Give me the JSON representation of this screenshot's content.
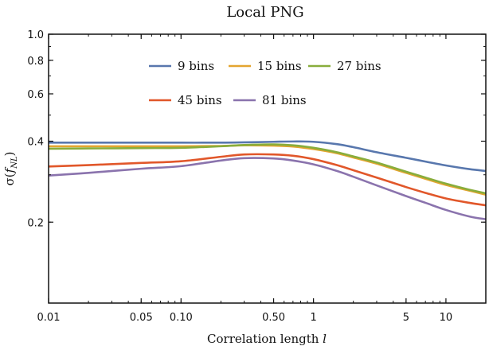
{
  "chart_data": {
    "type": "line",
    "title": "Local PNG",
    "xlabel": "Correlation length l",
    "ylabel": "σ(f_NL)",
    "xscale": "log",
    "yscale": "log",
    "xlim": [
      0.01,
      20
    ],
    "ylim": [
      0.1,
      1.0
    ],
    "xticks": [
      {
        "value": 0.01,
        "label": "0.01"
      },
      {
        "value": 0.05,
        "label": "0.05"
      },
      {
        "value": 0.1,
        "label": "0.10"
      },
      {
        "value": 0.5,
        "label": "0.50"
      },
      {
        "value": 1,
        "label": "1"
      },
      {
        "value": 5,
        "label": "5"
      },
      {
        "value": 10,
        "label": "10"
      }
    ],
    "yticks": [
      {
        "value": 0.2,
        "label": "0.2"
      },
      {
        "value": 0.4,
        "label": "0.4"
      },
      {
        "value": 0.6,
        "label": "0.6"
      },
      {
        "value": 0.8,
        "label": "0.8"
      },
      {
        "value": 1.0,
        "label": "1.0"
      }
    ],
    "grid": false,
    "legend_position": "top-center",
    "series": [
      {
        "name": "9 bins",
        "color": "#5877ad",
        "x": [
          0.01,
          0.02,
          0.05,
          0.1,
          0.2,
          0.3,
          0.5,
          0.7,
          1,
          1.5,
          2,
          3,
          5,
          7,
          10,
          15,
          20
        ],
        "y": [
          0.395,
          0.395,
          0.395,
          0.395,
          0.395,
          0.396,
          0.398,
          0.399,
          0.398,
          0.39,
          0.38,
          0.364,
          0.347,
          0.336,
          0.325,
          0.315,
          0.31
        ]
      },
      {
        "name": "15 bins",
        "color": "#e4a52f",
        "x": [
          0.01,
          0.02,
          0.05,
          0.1,
          0.2,
          0.3,
          0.5,
          0.7,
          1,
          1.5,
          2,
          3,
          5,
          7,
          10,
          15,
          20
        ],
        "y": [
          0.383,
          0.383,
          0.383,
          0.383,
          0.384,
          0.386,
          0.385,
          0.382,
          0.374,
          0.361,
          0.348,
          0.33,
          0.305,
          0.29,
          0.275,
          0.262,
          0.253
        ]
      },
      {
        "name": "27 bins",
        "color": "#88ad3c",
        "x": [
          0.01,
          0.02,
          0.05,
          0.1,
          0.2,
          0.3,
          0.5,
          0.7,
          1,
          1.5,
          2,
          3,
          5,
          7,
          10,
          15,
          20
        ],
        "y": [
          0.375,
          0.376,
          0.377,
          0.378,
          0.383,
          0.387,
          0.389,
          0.386,
          0.378,
          0.364,
          0.351,
          0.333,
          0.308,
          0.293,
          0.278,
          0.264,
          0.256
        ]
      },
      {
        "name": "45 bins",
        "color": "#e1572a",
        "x": [
          0.01,
          0.02,
          0.05,
          0.1,
          0.2,
          0.3,
          0.5,
          0.7,
          1,
          1.5,
          2,
          3,
          5,
          7,
          10,
          15,
          20
        ],
        "y": [
          0.322,
          0.326,
          0.332,
          0.337,
          0.35,
          0.357,
          0.357,
          0.353,
          0.343,
          0.326,
          0.312,
          0.293,
          0.27,
          0.257,
          0.245,
          0.236,
          0.231
        ]
      },
      {
        "name": "81 bins",
        "color": "#8a73ad",
        "x": [
          0.01,
          0.02,
          0.05,
          0.1,
          0.2,
          0.3,
          0.5,
          0.7,
          1,
          1.5,
          2,
          3,
          5,
          7,
          10,
          15,
          20
        ],
        "y": [
          0.298,
          0.305,
          0.316,
          0.323,
          0.339,
          0.346,
          0.345,
          0.339,
          0.328,
          0.31,
          0.295,
          0.274,
          0.25,
          0.236,
          0.222,
          0.21,
          0.205
        ]
      }
    ]
  }
}
